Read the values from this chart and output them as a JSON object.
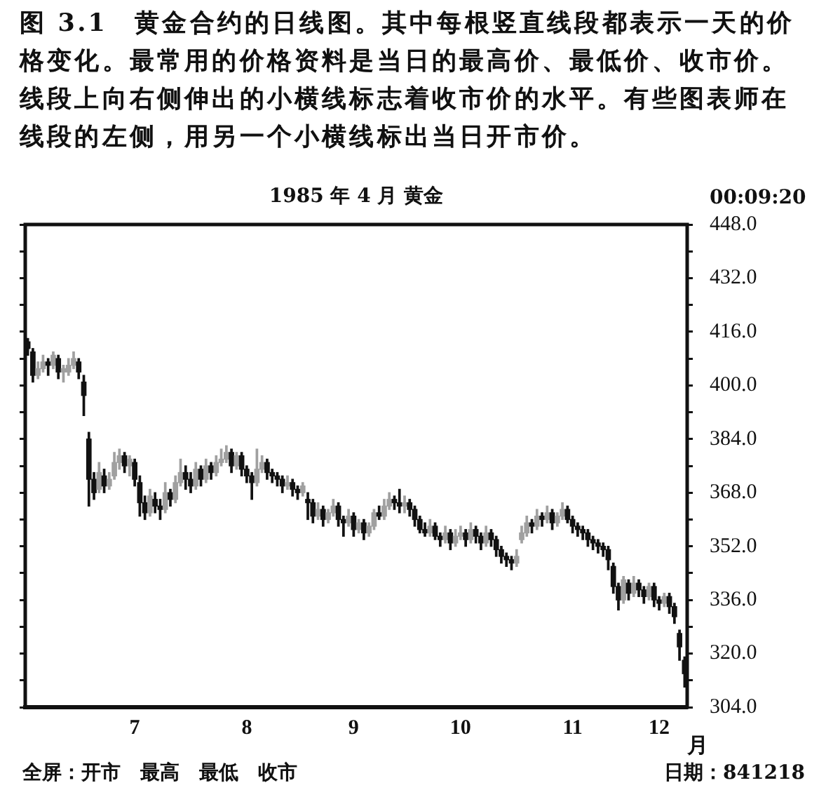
{
  "chart_data": {
    "type": "candlestick",
    "title": "图 3.1　黄金合约的日线图。其中每根竖直线段都表示一天的价格变化。最常用的价格资料是当日的最高价、最低价、收市价。线段上向右侧伸出的小横线标志着收市价的水平。有些图表师在线段的左侧，用另一个小横线标出当日开市价。",
    "subtitle": "1985 年 4 月 黄金",
    "xlabel": "月",
    "annotations": [
      "00:09:20",
      "全屏：开市　最高　最低　收市",
      "日期：841218"
    ],
    "legend": false,
    "grid": false,
    "ylim": [
      304,
      448
    ],
    "yticks": [
      {
        "value": 304,
        "label": "304.0"
      },
      {
        "value": 312,
        "label": null
      },
      {
        "value": 320,
        "label": "320.0"
      },
      {
        "value": 328,
        "label": null
      },
      {
        "value": 336,
        "label": "336.0"
      },
      {
        "value": 344,
        "label": null
      },
      {
        "value": 352,
        "label": "352.0"
      },
      {
        "value": 360,
        "label": null
      },
      {
        "value": 368,
        "label": "368.0"
      },
      {
        "value": 376,
        "label": null
      },
      {
        "value": 384,
        "label": "384.0"
      },
      {
        "value": 392,
        "label": null
      },
      {
        "value": 400,
        "label": "400.0"
      },
      {
        "value": 408,
        "label": null
      },
      {
        "value": 416,
        "label": "416.0"
      },
      {
        "value": 424,
        "label": null
      },
      {
        "value": 432,
        "label": "432.0"
      },
      {
        "value": 440,
        "label": null
      },
      {
        "value": 448,
        "label": "448.0"
      }
    ],
    "categories": [
      null,
      null,
      null,
      null,
      null,
      null,
      null,
      null,
      null,
      null,
      null,
      null,
      null,
      null,
      null,
      null,
      null,
      null,
      null,
      null,
      null,
      "7",
      null,
      null,
      null,
      null,
      null,
      null,
      null,
      null,
      null,
      null,
      null,
      null,
      null,
      null,
      null,
      null,
      null,
      null,
      null,
      null,
      null,
      "8",
      null,
      null,
      null,
      null,
      null,
      null,
      null,
      null,
      null,
      null,
      null,
      null,
      null,
      null,
      null,
      null,
      null,
      null,
      null,
      null,
      "9",
      null,
      null,
      null,
      null,
      null,
      null,
      null,
      null,
      null,
      null,
      null,
      null,
      null,
      null,
      null,
      null,
      null,
      null,
      null,
      null,
      "10",
      null,
      null,
      null,
      null,
      null,
      null,
      null,
      null,
      null,
      null,
      null,
      null,
      null,
      null,
      null,
      null,
      null,
      null,
      null,
      null,
      null,
      "11",
      null,
      null,
      null,
      null,
      null,
      null,
      null,
      null,
      null,
      null,
      null,
      null,
      null,
      null,
      null,
      null,
      "12",
      null,
      null,
      null,
      null,
      null
    ],
    "ohlc": [
      [
        413,
        414,
        409,
        411
      ],
      [
        410,
        411,
        401,
        403
      ],
      [
        403,
        407,
        402,
        405
      ],
      [
        405,
        409,
        404,
        407
      ],
      [
        407,
        408,
        403,
        406
      ],
      [
        406,
        410,
        405,
        409
      ],
      [
        408,
        409,
        402,
        404
      ],
      [
        404,
        406,
        401,
        405
      ],
      [
        404,
        408,
        403,
        406
      ],
      [
        406,
        410,
        405,
        408
      ],
      [
        407,
        408,
        402,
        404
      ],
      [
        401,
        403,
        391,
        397
      ],
      [
        384,
        386,
        364,
        372
      ],
      [
        372,
        374,
        366,
        368
      ],
      [
        369,
        377,
        368,
        374
      ],
      [
        373,
        375,
        368,
        370
      ],
      [
        370,
        374,
        369,
        372
      ],
      [
        373,
        380,
        372,
        377
      ],
      [
        377,
        381,
        375,
        379
      ],
      [
        379,
        380,
        374,
        376
      ],
      [
        376,
        379,
        373,
        378
      ],
      [
        377,
        378,
        370,
        372
      ],
      [
        371,
        373,
        361,
        365
      ],
      [
        365,
        367,
        360,
        362
      ],
      [
        362,
        369,
        361,
        367
      ],
      [
        366,
        368,
        362,
        364
      ],
      [
        364,
        366,
        360,
        363
      ],
      [
        363,
        371,
        362,
        368
      ],
      [
        368,
        369,
        364,
        366
      ],
      [
        366,
        373,
        365,
        371
      ],
      [
        371,
        378,
        370,
        374
      ],
      [
        374,
        376,
        369,
        372
      ],
      [
        372,
        374,
        368,
        370
      ],
      [
        370,
        377,
        369,
        375
      ],
      [
        375,
        376,
        370,
        372
      ],
      [
        372,
        378,
        371,
        376
      ],
      [
        376,
        377,
        372,
        374
      ],
      [
        374,
        379,
        373,
        377
      ],
      [
        377,
        381,
        376,
        378
      ],
      [
        378,
        382,
        377,
        380
      ],
      [
        380,
        381,
        374,
        376
      ],
      [
        376,
        380,
        375,
        379
      ],
      [
        379,
        380,
        373,
        375
      ],
      [
        375,
        376,
        371,
        373
      ],
      [
        373,
        374,
        366,
        371
      ],
      [
        371,
        381,
        370,
        375
      ],
      [
        375,
        379,
        374,
        377
      ],
      [
        377,
        378,
        372,
        374
      ],
      [
        374,
        375,
        371,
        373
      ],
      [
        373,
        374,
        370,
        372
      ],
      [
        372,
        373,
        368,
        370
      ],
      [
        370,
        373,
        369,
        371
      ],
      [
        371,
        372,
        367,
        369
      ],
      [
        369,
        370,
        366,
        368
      ],
      [
        368,
        371,
        367,
        370
      ],
      [
        366,
        368,
        360,
        365
      ],
      [
        365,
        366,
        359,
        361
      ],
      [
        361,
        365,
        360,
        363
      ],
      [
        363,
        364,
        358,
        360
      ],
      [
        360,
        363,
        359,
        362
      ],
      [
        362,
        366,
        361,
        364
      ],
      [
        364,
        365,
        358,
        360
      ],
      [
        360,
        361,
        355,
        359
      ],
      [
        359,
        363,
        358,
        361
      ],
      [
        361,
        362,
        355,
        357
      ],
      [
        357,
        360,
        356,
        359
      ],
      [
        359,
        360,
        354,
        356
      ],
      [
        356,
        359,
        355,
        358
      ],
      [
        358,
        363,
        357,
        362
      ],
      [
        362,
        364,
        360,
        361
      ],
      [
        361,
        366,
        360,
        364
      ],
      [
        364,
        368,
        363,
        366
      ],
      [
        366,
        367,
        363,
        365
      ],
      [
        365,
        369,
        362,
        364
      ],
      [
        364,
        367,
        362,
        365
      ],
      [
        365,
        366,
        361,
        363
      ],
      [
        363,
        364,
        358,
        360
      ],
      [
        360,
        361,
        356,
        357
      ],
      [
        357,
        359,
        355,
        356
      ],
      [
        356,
        360,
        355,
        358
      ],
      [
        358,
        359,
        354,
        355
      ],
      [
        355,
        356,
        352,
        354
      ],
      [
        354,
        358,
        353,
        356
      ],
      [
        356,
        357,
        351,
        353
      ],
      [
        353,
        357,
        352,
        355
      ],
      [
        355,
        358,
        354,
        356
      ],
      [
        356,
        357,
        352,
        354
      ],
      [
        354,
        359,
        353,
        357
      ],
      [
        357,
        358,
        353,
        355
      ],
      [
        355,
        356,
        351,
        353
      ],
      [
        353,
        358,
        352,
        356
      ],
      [
        356,
        357,
        352,
        354
      ],
      [
        354,
        355,
        349,
        351
      ],
      [
        351,
        352,
        347,
        349
      ],
      [
        349,
        350,
        346,
        348
      ],
      [
        348,
        349,
        345,
        347
      ],
      [
        347,
        351,
        346,
        349
      ],
      [
        354,
        358,
        353,
        356
      ],
      [
        356,
        361,
        355,
        359
      ],
      [
        359,
        360,
        356,
        358
      ],
      [
        358,
        363,
        357,
        361
      ],
      [
        361,
        362,
        358,
        360
      ],
      [
        360,
        364,
        359,
        362
      ],
      [
        362,
        363,
        357,
        359
      ],
      [
        359,
        362,
        358,
        361
      ],
      [
        361,
        365,
        360,
        363
      ],
      [
        363,
        364,
        359,
        360
      ],
      [
        360,
        361,
        356,
        358
      ],
      [
        358,
        359,
        355,
        357
      ],
      [
        357,
        358,
        354,
        356
      ],
      [
        356,
        357,
        352,
        354
      ],
      [
        354,
        355,
        351,
        353
      ],
      [
        353,
        354,
        350,
        352
      ],
      [
        352,
        353,
        349,
        351
      ],
      [
        351,
        352,
        345,
        348
      ],
      [
        346,
        347,
        338,
        340
      ],
      [
        340,
        341,
        333,
        336
      ],
      [
        336,
        343,
        335,
        342
      ],
      [
        341,
        342,
        336,
        338
      ],
      [
        338,
        343,
        337,
        341
      ],
      [
        341,
        342,
        337,
        339
      ],
      [
        339,
        340,
        335,
        337
      ],
      [
        337,
        341,
        336,
        340
      ],
      [
        340,
        341,
        334,
        336
      ],
      [
        336,
        337,
        333,
        335
      ],
      [
        335,
        338,
        334,
        337
      ],
      [
        337,
        338,
        332,
        334
      ],
      [
        334,
        335,
        329,
        331
      ],
      [
        326,
        327,
        318,
        322
      ],
      [
        318,
        319,
        310,
        314
      ]
    ]
  }
}
